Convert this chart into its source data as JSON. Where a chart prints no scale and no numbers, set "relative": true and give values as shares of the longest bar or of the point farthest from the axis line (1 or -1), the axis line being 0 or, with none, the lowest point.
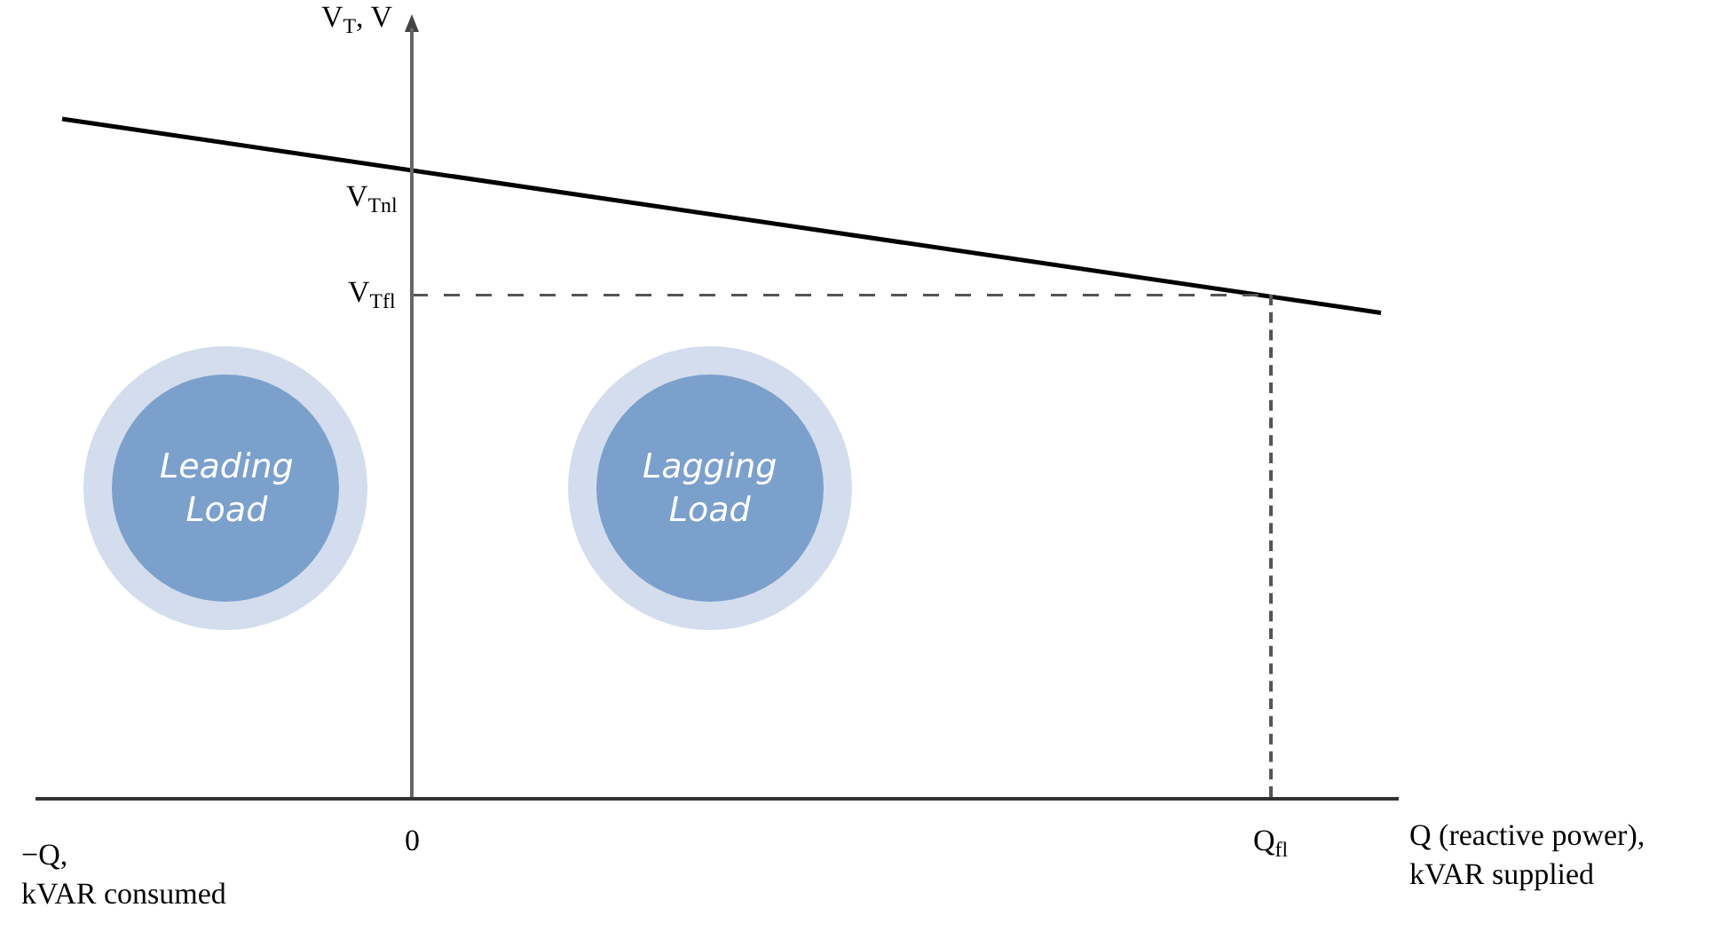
{
  "chart_data": {
    "type": "line",
    "relative": true,
    "ylabel": "V$_{T}$, V",
    "xlabel": "Q (reactive power),\nkVAR supplied",
    "categories": [
      null,
      null
    ],
    "series": [
      {
        "color": "#000000",
        "values": [
          1,
          0.714
        ]
      }
    ],
    "marker": "none",
    "line_style": "solid",
    "ref_lines": [
      {
        "axis": "y",
        "value": 0.74,
        "label": "V$_{Tfl}$",
        "color": "#555555",
        "line_style": "dashed"
      }
    ],
    "annotations": [
      "V$_{Tnl}$",
      "0",
      "Q$_{fl}$",
      "−Q,\nkVAR consumed",
      "Leading\nLoad",
      "Lagging\nLoad"
    ]
  }
}
